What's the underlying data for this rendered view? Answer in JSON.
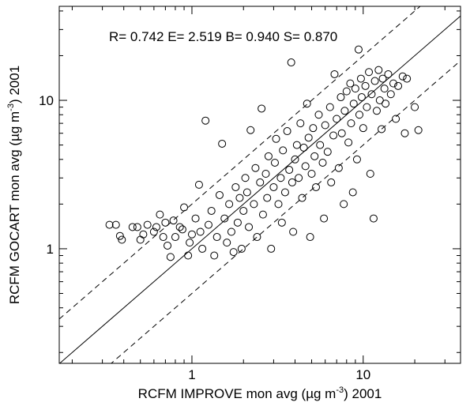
{
  "chart_data": {
    "type": "scatter",
    "annotation": "R= 0.742 E= 2.519 B= 0.940 S= 0.870",
    "xlabel": [
      "RCFM IMPROVE mon avg (µg m",
      "-3",
      ") 2001"
    ],
    "ylabel": [
      "RCFM GOCART mon avg (µg m",
      "-3",
      ") 2001"
    ],
    "log_scale": true,
    "color": "#000000",
    "xlim": [
      0.168,
      37
    ],
    "ylim": [
      0.169,
      43
    ],
    "xticks": [
      1,
      10
    ],
    "yticks": [
      1,
      10
    ],
    "xminor_ticks": [
      0.2,
      0.3,
      0.4,
      0.5,
      0.6,
      0.7,
      0.8,
      0.9,
      2,
      3,
      4,
      5,
      6,
      7,
      8,
      9,
      20,
      30
    ],
    "yminor_ticks": [
      0.2,
      0.3,
      0.4,
      0.5,
      0.6,
      0.7,
      0.8,
      0.9,
      2,
      3,
      4,
      5,
      6,
      7,
      8,
      9,
      20,
      30,
      40
    ],
    "reference_lines": [
      {
        "slope": 1,
        "style": "solid"
      },
      {
        "slope": 2,
        "style": "dashed"
      },
      {
        "slope": 0.5,
        "style": "dashed"
      }
    ],
    "x": [
      0.33,
      0.36,
      0.38,
      0.39,
      0.45,
      0.48,
      0.5,
      0.52,
      0.55,
      0.6,
      0.62,
      0.65,
      0.68,
      0.7,
      0.72,
      0.75,
      0.78,
      0.8,
      0.85,
      0.88,
      0.9,
      0.95,
      0.97,
      1.0,
      1.05,
      1.1,
      1.12,
      1.15,
      1.2,
      1.25,
      1.3,
      1.35,
      1.4,
      1.45,
      1.5,
      1.55,
      1.6,
      1.65,
      1.7,
      1.75,
      1.8,
      1.85,
      1.9,
      1.95,
      2.0,
      2.05,
      2.1,
      2.15,
      2.2,
      2.3,
      2.35,
      2.4,
      2.5,
      2.55,
      2.6,
      2.7,
      2.75,
      2.8,
      2.9,
      3.0,
      3.05,
      3.1,
      3.2,
      3.3,
      3.35,
      3.4,
      3.5,
      3.6,
      3.7,
      3.8,
      3.85,
      3.9,
      4.0,
      4.1,
      4.2,
      4.3,
      4.4,
      4.5,
      4.6,
      4.7,
      4.8,
      4.9,
      5.0,
      5.1,
      5.2,
      5.3,
      5.5,
      5.6,
      5.8,
      5.9,
      6.0,
      6.2,
      6.4,
      6.5,
      6.7,
      6.8,
      7.0,
      7.2,
      7.4,
      7.5,
      7.7,
      7.8,
      8.0,
      8.2,
      8.4,
      8.5,
      8.7,
      8.8,
      9.0,
      9.2,
      9.4,
      9.5,
      9.7,
      9.8,
      10,
      10.3,
      10.5,
      10.8,
      11,
      11.2,
      11.5,
      11.7,
      12,
      12.3,
      12.5,
      12.8,
      13,
      13.3,
      13.5,
      14,
      14.5,
      15,
      15.5,
      16,
      17,
      17.5,
      18,
      20,
      21
    ],
    "y": [
      1.45,
      1.45,
      1.22,
      1.15,
      1.4,
      1.4,
      1.15,
      1.25,
      1.45,
      1.3,
      1.4,
      1.7,
      1.2,
      1.5,
      1.05,
      0.88,
      1.55,
      1.2,
      1.4,
      1.35,
      1.9,
      0.9,
      1.1,
      1.25,
      1.6,
      2.7,
      1.3,
      1.0,
      7.3,
      1.45,
      1.8,
      0.9,
      1.2,
      2.3,
      5.1,
      1.6,
      1.1,
      2.0,
      1.3,
      0.95,
      2.6,
      1.5,
      2.2,
      1.0,
      1.8,
      3.0,
      2.4,
      1.4,
      6.3,
      2.0,
      3.5,
      1.2,
      2.8,
      8.8,
      1.7,
      3.2,
      2.2,
      4.2,
      1.0,
      2.6,
      3.8,
      5.5,
      2.0,
      3.0,
      1.5,
      4.6,
      2.4,
      6.2,
      3.4,
      18,
      2.8,
      1.3,
      4.0,
      5.0,
      3.0,
      7.0,
      2.2,
      4.8,
      3.6,
      9.5,
      5.6,
      1.2,
      3.2,
      6.5,
      4.2,
      2.6,
      8.0,
      5.0,
      3.8,
      1.6,
      6.8,
      4.5,
      9.0,
      2.8,
      5.8,
      15,
      7.5,
      3.5,
      10.5,
      6.0,
      2.0,
      8.5,
      11.5,
      5.2,
      13,
      7.0,
      2.4,
      9.5,
      12,
      4.0,
      22,
      8.0,
      14,
      10.5,
      6.5,
      12.5,
      9.0,
      15.5,
      3.2,
      11,
      1.6,
      13.5,
      8.5,
      16,
      10,
      6.4,
      14,
      12,
      9.5,
      15,
      11,
      13,
      7.5,
      12.5,
      14.5,
      6.0,
      14,
      9.0,
      6.3
    ]
  }
}
